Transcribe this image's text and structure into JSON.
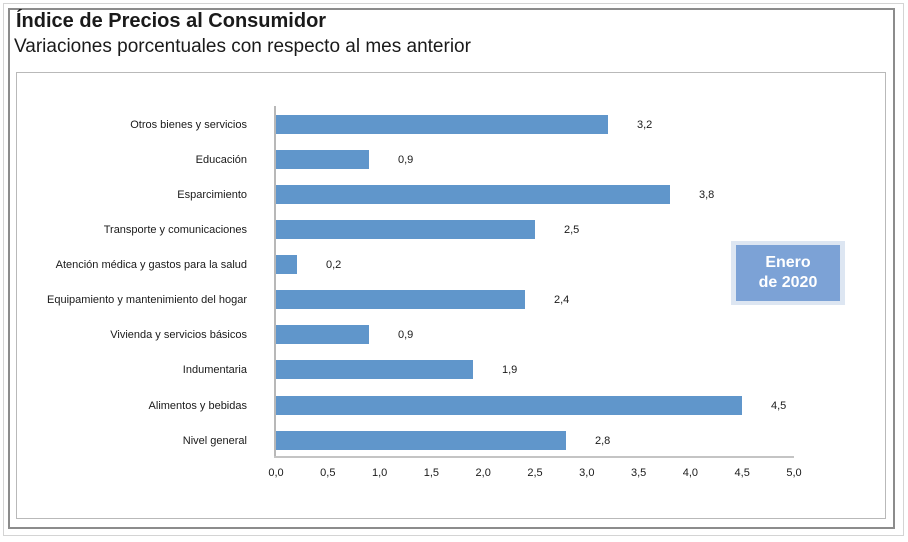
{
  "header": {
    "title": "Índice de Precios al Consumidor",
    "subtitle": "Variaciones porcentuales con respecto al mes anterior"
  },
  "badge": {
    "line1": "Enero",
    "line2": "de 2020"
  },
  "colors": {
    "bar": "#6096cb",
    "badge": "#7ca2d6"
  },
  "chart_data": {
    "type": "bar",
    "orientation": "horizontal",
    "title": "Índice de Precios al Consumidor",
    "subtitle": "Variaciones porcentuales con respecto al mes anterior",
    "annotation": "Enero de 2020",
    "categories": [
      "Otros bienes y servicios",
      "Educación",
      "Esparcimiento",
      "Transporte y comunicaciones",
      "Atención médica y gastos para la salud",
      "Equipamiento y  mantenimiento del hogar",
      "Vivienda y servicios básicos",
      "Indumentaria",
      "Alimentos y bebidas",
      "Nivel  general"
    ],
    "values": [
      3.2,
      0.9,
      3.8,
      2.5,
      0.2,
      2.4,
      0.9,
      1.9,
      4.5,
      2.8
    ],
    "value_labels": [
      "3,2",
      "0,9",
      "3,8",
      "2,5",
      "0,2",
      "2,4",
      "0,9",
      "1,9",
      "4,5",
      "2,8"
    ],
    "xlabel": "",
    "ylabel": "",
    "xlim": [
      0,
      5
    ],
    "x_ticks": [
      "0,0",
      "0,5",
      "1,0",
      "1,5",
      "2,0",
      "2,5",
      "3,0",
      "3,5",
      "4,0",
      "4,5",
      "5,0"
    ],
    "grid": false,
    "legend": null
  }
}
